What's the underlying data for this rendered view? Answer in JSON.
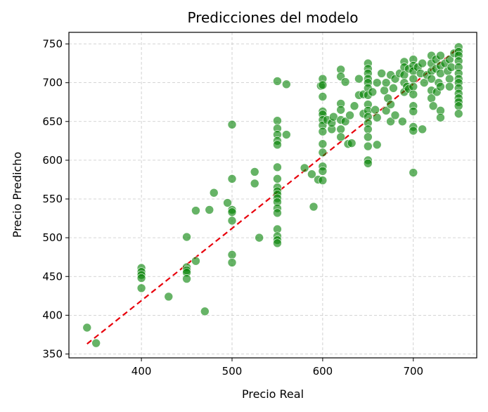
{
  "chart_data": {
    "type": "scatter",
    "title": "Predicciones del modelo",
    "xlabel": "Precio Real",
    "ylabel": "Precio Predicho",
    "xlim": [
      320,
      770
    ],
    "ylim": [
      345,
      765
    ],
    "xticks": [
      400,
      500,
      600,
      700
    ],
    "yticks": [
      350,
      400,
      450,
      500,
      550,
      600,
      650,
      700,
      750
    ],
    "grid": true,
    "point_color": "#008000",
    "reference_line": {
      "color": "#e8000b",
      "style": "dashed",
      "from": [
        340,
        363
      ],
      "to": [
        750,
        745
      ]
    },
    "points": [
      [
        340,
        384
      ],
      [
        350,
        364
      ],
      [
        400,
        461
      ],
      [
        400,
        456
      ],
      [
        400,
        452
      ],
      [
        400,
        448
      ],
      [
        400,
        435
      ],
      [
        430,
        424
      ],
      [
        450,
        501
      ],
      [
        450,
        462
      ],
      [
        450,
        458
      ],
      [
        450,
        455
      ],
      [
        450,
        447
      ],
      [
        460,
        535
      ],
      [
        460,
        470
      ],
      [
        470,
        405
      ],
      [
        475,
        536
      ],
      [
        480,
        558
      ],
      [
        495,
        545
      ],
      [
        500,
        646
      ],
      [
        500,
        576
      ],
      [
        500,
        536
      ],
      [
        500,
        533
      ],
      [
        500,
        522
      ],
      [
        500,
        478
      ],
      [
        500,
        468
      ],
      [
        525,
        585
      ],
      [
        525,
        570
      ],
      [
        530,
        500
      ],
      [
        550,
        702
      ],
      [
        550,
        651
      ],
      [
        550,
        641
      ],
      [
        550,
        633
      ],
      [
        550,
        625
      ],
      [
        550,
        620
      ],
      [
        550,
        591
      ],
      [
        550,
        576
      ],
      [
        550,
        565
      ],
      [
        550,
        560
      ],
      [
        550,
        556
      ],
      [
        550,
        551
      ],
      [
        550,
        546
      ],
      [
        550,
        538
      ],
      [
        550,
        532
      ],
      [
        550,
        511
      ],
      [
        550,
        502
      ],
      [
        550,
        497
      ],
      [
        550,
        493
      ],
      [
        560,
        698
      ],
      [
        560,
        633
      ],
      [
        580,
        590
      ],
      [
        588,
        582
      ],
      [
        590,
        540
      ],
      [
        595,
        575
      ],
      [
        598,
        696
      ],
      [
        600,
        705
      ],
      [
        600,
        697
      ],
      [
        600,
        682
      ],
      [
        600,
        663
      ],
      [
        600,
        659
      ],
      [
        600,
        652
      ],
      [
        600,
        645
      ],
      [
        600,
        637
      ],
      [
        600,
        621
      ],
      [
        600,
        610
      ],
      [
        600,
        592
      ],
      [
        600,
        586
      ],
      [
        600,
        574
      ],
      [
        605,
        652
      ],
      [
        610,
        640
      ],
      [
        610,
        648
      ],
      [
        612,
        656
      ],
      [
        620,
        717
      ],
      [
        620,
        708
      ],
      [
        620,
        673
      ],
      [
        620,
        665
      ],
      [
        620,
        652
      ],
      [
        620,
        640
      ],
      [
        620,
        630
      ],
      [
        625,
        701
      ],
      [
        625,
        650
      ],
      [
        628,
        621
      ],
      [
        630,
        658
      ],
      [
        632,
        622
      ],
      [
        635,
        670
      ],
      [
        640,
        705
      ],
      [
        640,
        684
      ],
      [
        645,
        685
      ],
      [
        645,
        660
      ],
      [
        650,
        725
      ],
      [
        650,
        718
      ],
      [
        650,
        712
      ],
      [
        650,
        705
      ],
      [
        650,
        700
      ],
      [
        650,
        693
      ],
      [
        650,
        684
      ],
      [
        650,
        672
      ],
      [
        650,
        664
      ],
      [
        650,
        656
      ],
      [
        650,
        648
      ],
      [
        650,
        640
      ],
      [
        650,
        630
      ],
      [
        650,
        618
      ],
      [
        650,
        600
      ],
      [
        650,
        596
      ],
      [
        655,
        688
      ],
      [
        658,
        665
      ],
      [
        660,
        700
      ],
      [
        660,
        620
      ],
      [
        660,
        655
      ],
      [
        665,
        712
      ],
      [
        668,
        690
      ],
      [
        670,
        700
      ],
      [
        670,
        664
      ],
      [
        672,
        680
      ],
      [
        675,
        710
      ],
      [
        675,
        672
      ],
      [
        675,
        650
      ],
      [
        678,
        693
      ],
      [
        680,
        705
      ],
      [
        680,
        658
      ],
      [
        685,
        712
      ],
      [
        688,
        650
      ],
      [
        690,
        727
      ],
      [
        690,
        720
      ],
      [
        690,
        710
      ],
      [
        690,
        700
      ],
      [
        690,
        688
      ],
      [
        693,
        695
      ],
      [
        695,
        718
      ],
      [
        695,
        692
      ],
      [
        700,
        730
      ],
      [
        700,
        722
      ],
      [
        700,
        715
      ],
      [
        700,
        705
      ],
      [
        700,
        695
      ],
      [
        700,
        685
      ],
      [
        700,
        670
      ],
      [
        700,
        663
      ],
      [
        700,
        643
      ],
      [
        700,
        638
      ],
      [
        700,
        584
      ],
      [
        705,
        720
      ],
      [
        708,
        712
      ],
      [
        710,
        725
      ],
      [
        710,
        640
      ],
      [
        712,
        700
      ],
      [
        715,
        710
      ],
      [
        720,
        735
      ],
      [
        720,
        725
      ],
      [
        720,
        715
      ],
      [
        720,
        705
      ],
      [
        720,
        690
      ],
      [
        720,
        680
      ],
      [
        722,
        670
      ],
      [
        725,
        730
      ],
      [
        725,
        718
      ],
      [
        726,
        688
      ],
      [
        728,
        700
      ],
      [
        730,
        735
      ],
      [
        730,
        722
      ],
      [
        730,
        712
      ],
      [
        730,
        695
      ],
      [
        730,
        664
      ],
      [
        730,
        655
      ],
      [
        735,
        725
      ],
      [
        738,
        715
      ],
      [
        740,
        730
      ],
      [
        740,
        705
      ],
      [
        740,
        695
      ],
      [
        742,
        720
      ],
      [
        745,
        738
      ],
      [
        750,
        746
      ],
      [
        750,
        740
      ],
      [
        750,
        735
      ],
      [
        750,
        728
      ],
      [
        750,
        720
      ],
      [
        750,
        712
      ],
      [
        750,
        705
      ],
      [
        750,
        700
      ],
      [
        750,
        693
      ],
      [
        750,
        686
      ],
      [
        750,
        680
      ],
      [
        750,
        675
      ],
      [
        750,
        670
      ],
      [
        750,
        660
      ]
    ]
  }
}
